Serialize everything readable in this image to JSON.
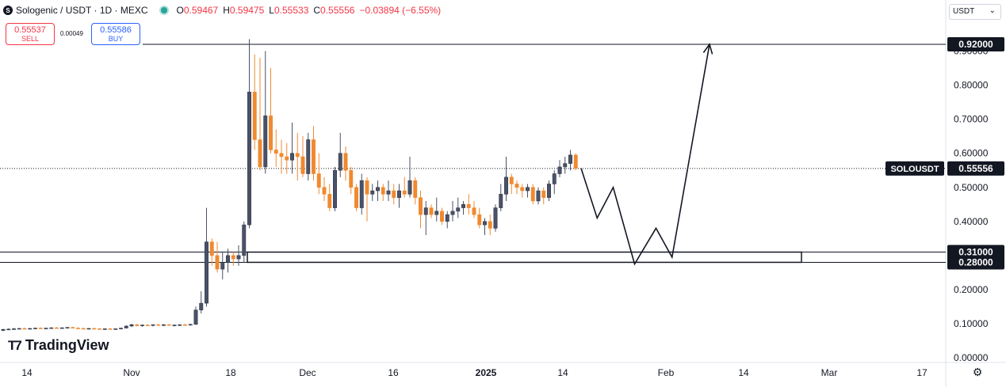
{
  "header": {
    "symbol": "Sologenic / USDT · 1D · MEXC",
    "ohlc": [
      {
        "k": "O",
        "v": "0.59467"
      },
      {
        "k": "H",
        "v": "0.59475"
      },
      {
        "k": "L",
        "v": "0.55533"
      },
      {
        "k": "C",
        "v": "0.55556"
      },
      {
        "k": "",
        "v": "−0.03894 (−6.55%)"
      }
    ]
  },
  "trade": {
    "sell_price": "0.55537",
    "sell_label": "SELL",
    "spread": "0.00049",
    "buy_price": "0.55586",
    "buy_label": "BUY"
  },
  "currency": "USDT",
  "brand": "TradingView",
  "colors": {
    "up": "#4a5169",
    "down": "#f0892f",
    "accent_label": "#131722"
  },
  "chart_data": {
    "type": "candlestick",
    "ylim": [
      0,
      1.0
    ],
    "yticks": [
      "0.00000",
      "0.10000",
      "0.20000",
      "0.30000",
      "0.40000",
      "0.50000",
      "0.60000",
      "0.70000",
      "0.80000",
      "0.90000"
    ],
    "xtick_labels": [
      "14",
      "Nov",
      "18",
      "Dec",
      "16",
      "2025",
      "14",
      "Feb",
      "14",
      "Mar",
      "17"
    ],
    "price_labels": [
      {
        "label": "0.92000",
        "value": 0.92
      },
      {
        "label": "0.31000",
        "value": 0.31
      },
      {
        "label": "0.28000",
        "value": 0.28
      }
    ],
    "last_price": {
      "symbol": "SOLOUSDT",
      "label": "0.55556",
      "value": 0.55556
    },
    "zone": {
      "low": 0.28,
      "high": 0.31
    },
    "candles": [
      [
        0.08,
        0.085,
        0.078,
        0.083
      ],
      [
        0.083,
        0.086,
        0.081,
        0.084
      ],
      [
        0.084,
        0.087,
        0.082,
        0.085
      ],
      [
        0.085,
        0.087,
        0.083,
        0.086
      ],
      [
        0.086,
        0.088,
        0.084,
        0.085
      ],
      [
        0.085,
        0.087,
        0.083,
        0.086
      ],
      [
        0.086,
        0.088,
        0.084,
        0.087
      ],
      [
        0.087,
        0.089,
        0.085,
        0.086
      ],
      [
        0.086,
        0.088,
        0.084,
        0.087
      ],
      [
        0.087,
        0.089,
        0.085,
        0.088
      ],
      [
        0.088,
        0.09,
        0.086,
        0.087
      ],
      [
        0.087,
        0.089,
        0.085,
        0.088
      ],
      [
        0.088,
        0.09,
        0.086,
        0.089
      ],
      [
        0.089,
        0.091,
        0.086,
        0.087
      ],
      [
        0.087,
        0.089,
        0.085,
        0.086
      ],
      [
        0.086,
        0.088,
        0.084,
        0.085
      ],
      [
        0.085,
        0.087,
        0.083,
        0.086
      ],
      [
        0.086,
        0.088,
        0.084,
        0.085
      ],
      [
        0.085,
        0.087,
        0.083,
        0.084
      ],
      [
        0.084,
        0.086,
        0.082,
        0.085
      ],
      [
        0.085,
        0.087,
        0.083,
        0.084
      ],
      [
        0.084,
        0.086,
        0.082,
        0.085
      ],
      [
        0.085,
        0.088,
        0.083,
        0.087
      ],
      [
        0.087,
        0.095,
        0.086,
        0.093
      ],
      [
        0.093,
        0.1,
        0.09,
        0.097
      ],
      [
        0.097,
        0.099,
        0.092,
        0.094
      ],
      [
        0.094,
        0.097,
        0.091,
        0.096
      ],
      [
        0.096,
        0.098,
        0.093,
        0.095
      ],
      [
        0.095,
        0.098,
        0.092,
        0.097
      ],
      [
        0.097,
        0.099,
        0.094,
        0.096
      ],
      [
        0.096,
        0.098,
        0.093,
        0.097
      ],
      [
        0.097,
        0.099,
        0.094,
        0.095
      ],
      [
        0.095,
        0.097,
        0.092,
        0.096
      ],
      [
        0.096,
        0.098,
        0.093,
        0.097
      ],
      [
        0.097,
        0.099,
        0.094,
        0.096
      ],
      [
        0.096,
        0.099,
        0.094,
        0.098
      ],
      [
        0.098,
        0.15,
        0.096,
        0.14
      ],
      [
        0.14,
        0.195,
        0.13,
        0.16
      ],
      [
        0.16,
        0.44,
        0.15,
        0.34
      ],
      [
        0.34,
        0.35,
        0.27,
        0.3
      ],
      [
        0.3,
        0.34,
        0.25,
        0.26
      ],
      [
        0.26,
        0.31,
        0.23,
        0.28
      ],
      [
        0.28,
        0.32,
        0.25,
        0.3
      ],
      [
        0.3,
        0.31,
        0.27,
        0.29
      ],
      [
        0.29,
        0.33,
        0.27,
        0.3
      ],
      [
        0.3,
        0.4,
        0.28,
        0.39
      ],
      [
        0.39,
        0.935,
        0.38,
        0.78
      ],
      [
        0.78,
        0.89,
        0.61,
        0.64
      ],
      [
        0.64,
        0.88,
        0.55,
        0.56
      ],
      [
        0.56,
        0.9,
        0.54,
        0.71
      ],
      [
        0.71,
        0.85,
        0.6,
        0.61
      ],
      [
        0.61,
        0.67,
        0.56,
        0.6
      ],
      [
        0.6,
        0.64,
        0.54,
        0.59
      ],
      [
        0.59,
        0.63,
        0.54,
        0.58
      ],
      [
        0.58,
        0.69,
        0.54,
        0.6
      ],
      [
        0.6,
        0.66,
        0.52,
        0.59
      ],
      [
        0.59,
        0.65,
        0.53,
        0.54
      ],
      [
        0.54,
        0.66,
        0.52,
        0.64
      ],
      [
        0.64,
        0.68,
        0.52,
        0.54
      ],
      [
        0.54,
        0.6,
        0.48,
        0.5
      ],
      [
        0.5,
        0.53,
        0.46,
        0.48
      ],
      [
        0.48,
        0.51,
        0.43,
        0.44
      ],
      [
        0.44,
        0.56,
        0.43,
        0.55
      ],
      [
        0.55,
        0.66,
        0.53,
        0.6
      ],
      [
        0.6,
        0.62,
        0.52,
        0.55
      ],
      [
        0.55,
        0.56,
        0.48,
        0.5
      ],
      [
        0.5,
        0.51,
        0.43,
        0.44
      ],
      [
        0.44,
        0.54,
        0.42,
        0.52
      ],
      [
        0.52,
        0.53,
        0.4,
        0.48
      ],
      [
        0.48,
        0.51,
        0.46,
        0.49
      ],
      [
        0.49,
        0.52,
        0.46,
        0.5
      ],
      [
        0.5,
        0.51,
        0.46,
        0.48
      ],
      [
        0.48,
        0.52,
        0.46,
        0.49
      ],
      [
        0.49,
        0.51,
        0.45,
        0.47
      ],
      [
        0.47,
        0.51,
        0.44,
        0.49
      ],
      [
        0.49,
        0.53,
        0.47,
        0.48
      ],
      [
        0.48,
        0.59,
        0.47,
        0.52
      ],
      [
        0.52,
        0.53,
        0.45,
        0.47
      ],
      [
        0.47,
        0.49,
        0.38,
        0.42
      ],
      [
        0.42,
        0.46,
        0.36,
        0.44
      ],
      [
        0.44,
        0.45,
        0.41,
        0.42
      ],
      [
        0.42,
        0.47,
        0.4,
        0.43
      ],
      [
        0.43,
        0.44,
        0.39,
        0.4
      ],
      [
        0.4,
        0.43,
        0.38,
        0.42
      ],
      [
        0.42,
        0.46,
        0.4,
        0.43
      ],
      [
        0.43,
        0.47,
        0.41,
        0.44
      ],
      [
        0.44,
        0.46,
        0.42,
        0.45
      ],
      [
        0.45,
        0.48,
        0.42,
        0.44
      ],
      [
        0.44,
        0.46,
        0.41,
        0.42
      ],
      [
        0.42,
        0.44,
        0.38,
        0.39
      ],
      [
        0.39,
        0.41,
        0.36,
        0.4
      ],
      [
        0.4,
        0.42,
        0.36,
        0.38
      ],
      [
        0.38,
        0.45,
        0.37,
        0.44
      ],
      [
        0.44,
        0.51,
        0.43,
        0.48
      ],
      [
        0.48,
        0.59,
        0.46,
        0.53
      ],
      [
        0.53,
        0.54,
        0.48,
        0.51
      ],
      [
        0.51,
        0.52,
        0.48,
        0.5
      ],
      [
        0.5,
        0.51,
        0.47,
        0.49
      ],
      [
        0.49,
        0.51,
        0.47,
        0.5
      ],
      [
        0.5,
        0.51,
        0.45,
        0.46
      ],
      [
        0.46,
        0.5,
        0.45,
        0.49
      ],
      [
        0.49,
        0.5,
        0.45,
        0.47
      ],
      [
        0.47,
        0.52,
        0.46,
        0.51
      ],
      [
        0.51,
        0.55,
        0.48,
        0.54
      ],
      [
        0.54,
        0.58,
        0.53,
        0.56
      ],
      [
        0.56,
        0.59,
        0.54,
        0.57
      ],
      [
        0.57,
        0.61,
        0.55,
        0.595
      ],
      [
        0.595,
        0.6,
        0.55,
        0.556
      ]
    ],
    "projection_path": [
      {
        "day": 108,
        "price": 0.556
      },
      {
        "day": 111,
        "price": 0.41
      },
      {
        "day": 114,
        "price": 0.5
      },
      {
        "day": 118,
        "price": 0.275
      },
      {
        "day": 122,
        "price": 0.38
      },
      {
        "day": 125,
        "price": 0.295
      },
      {
        "day": 132,
        "price": 0.92
      }
    ]
  }
}
